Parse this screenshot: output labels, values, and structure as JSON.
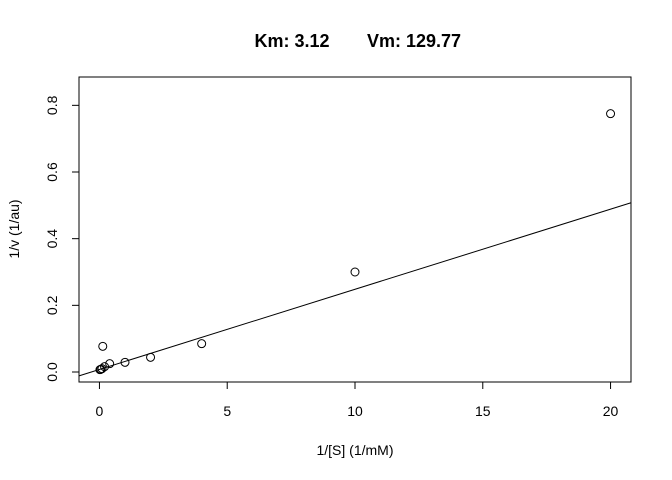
{
  "chart_data": {
    "type": "scatter",
    "title_parts": [
      "Km: 3.12",
      "Vm: 129.77"
    ],
    "xlabel": "1/[S] (1/mM)",
    "ylabel": "1/v (1/au)",
    "xlim": [
      -0.8,
      20.8
    ],
    "ylim": [
      -0.03,
      0.885
    ],
    "x_ticks": [
      0,
      5,
      10,
      15,
      20
    ],
    "x_tick_labels": [
      "0",
      "5",
      "10",
      "15",
      "20"
    ],
    "y_ticks": [
      0.0,
      0.2,
      0.4,
      0.6,
      0.8
    ],
    "y_tick_labels": [
      "0.0",
      "0.2",
      "0.4",
      "0.6",
      "0.8"
    ],
    "points": [
      {
        "x": 20,
        "y": 0.775
      },
      {
        "x": 10,
        "y": 0.3
      },
      {
        "x": 4,
        "y": 0.085
      },
      {
        "x": 2,
        "y": 0.044
      },
      {
        "x": 1,
        "y": 0.029
      },
      {
        "x": 0.4,
        "y": 0.025
      },
      {
        "x": 0.2,
        "y": 0.016
      },
      {
        "x": 0.13,
        "y": 0.077
      },
      {
        "x": 0.1,
        "y": 0.01
      },
      {
        "x": 0.05,
        "y": 0.008
      },
      {
        "x": 0.02,
        "y": 0.007
      }
    ],
    "fit_line": {
      "slope": 0.02404,
      "intercept": 0.0077
    },
    "grid": false,
    "legend": "none"
  }
}
